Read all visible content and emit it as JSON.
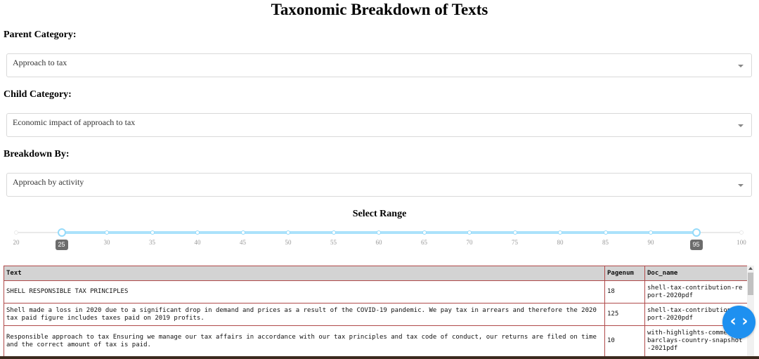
{
  "page": {
    "title": "Taxonomic Breakdown of Texts"
  },
  "filters": {
    "parent_label": "Parent Category:",
    "parent_value": "Approach to tax",
    "child_label": "Child Category:",
    "child_value": "Economic impact of approach to tax",
    "breakdown_label": "Breakdown By:",
    "breakdown_value": "Approach by activity",
    "dropdown_icon": "chevron-down-icon"
  },
  "range": {
    "title": "Select Range",
    "min": 20,
    "max": 100,
    "step": 5,
    "ticks": [
      "20",
      "25",
      "30",
      "35",
      "40",
      "45",
      "50",
      "55",
      "60",
      "65",
      "70",
      "75",
      "80",
      "85",
      "90",
      "95",
      "100"
    ],
    "selected": [
      25,
      95
    ],
    "low_label": "25",
    "high_label": "95",
    "track_color": "#abe2fb",
    "handle_color": "#96dbfa"
  },
  "table": {
    "columns": [
      "Text",
      "Pagenum",
      "Doc_name"
    ],
    "rows": [
      {
        "text": "SHELL RESPONSIBLE TAX PRINCIPLES",
        "pagenum": "18",
        "doc": "shell-tax-contribution-report-2020pdf"
      },
      {
        "text": "Shell made a loss in 2020 due to a significant drop in demand and prices as a result of the COVID-19 pandemic. We pay tax in arrears and therefore the 2020 tax paid figure includes taxes paid on 2019 profits.",
        "pagenum": "125",
        "doc": "shell-tax-contribution-report-2020pdf"
      },
      {
        "text": "Responsible approach to tax Ensuring we manage our tax affairs in accordance with our tax principles and tax code of conduct, our returns are filed on time and the correct amount of tax is paid.",
        "pagenum": "10",
        "doc": "with-highlights-comments-barclays-country-snapshot-2021pdf"
      }
    ]
  },
  "fab": {
    "icon": "code-icon",
    "glyph": "‹ ›",
    "color": "#1e90f0"
  }
}
